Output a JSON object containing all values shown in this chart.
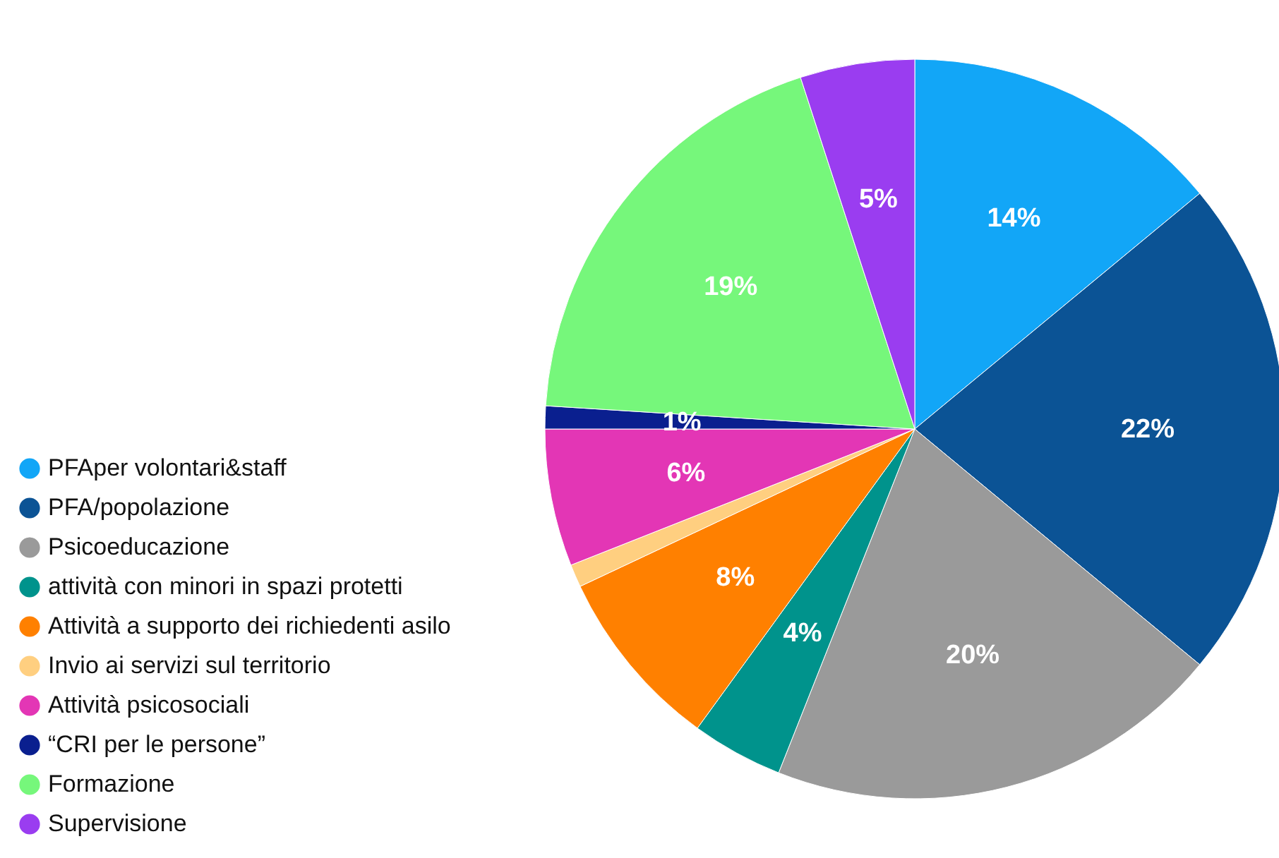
{
  "chart_data": {
    "type": "pie",
    "categories": [
      "PFAper volontari&staff",
      "PFA/popolazione",
      "Psicoeducazione",
      "attività con minori in spazi protetti",
      "Attività a supporto dei richiedenti asilo",
      "Invio ai servizi sul territorio",
      "Attività psicosociali",
      "“CRI per le persone”",
      "Formazione",
      "Supervisione"
    ],
    "values": [
      14,
      22,
      20,
      4,
      8,
      1,
      6,
      1,
      19,
      5
    ],
    "value_labels": [
      "14%",
      "22%",
      "20%",
      "4%",
      "8%",
      null,
      "6%",
      "1%",
      "19%",
      "5%"
    ],
    "colors": [
      "#12a6f7",
      "#0b5395",
      "#9a9a9a",
      "#00938c",
      "#ff8000",
      "#ffcf80",
      "#e336b5",
      "#0a1f8f",
      "#76f77b",
      "#9a3df0"
    ],
    "legend": "bottom left"
  }
}
